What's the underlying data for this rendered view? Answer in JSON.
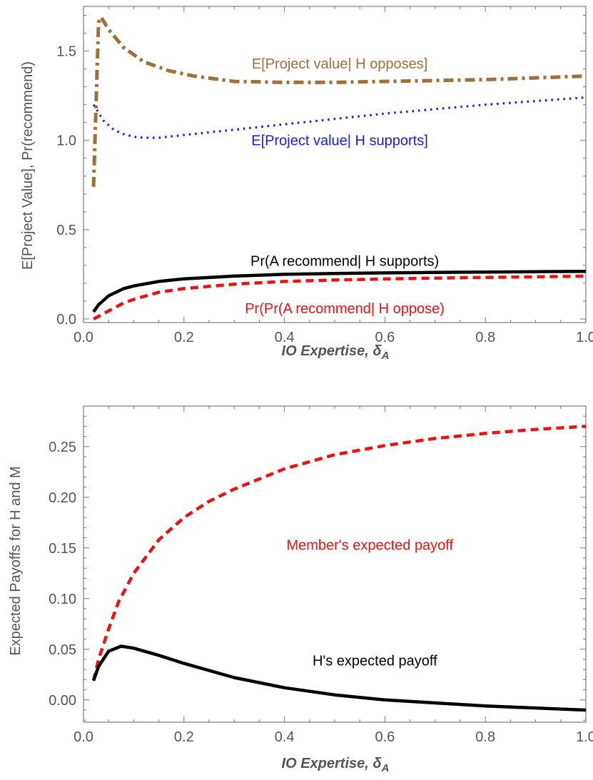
{
  "chart_data": [
    {
      "type": "line",
      "xlabel": "IO Expertise, δ",
      "xlabel_subscript": "A",
      "ylabel": "E[Project Value], Pr(recommend)",
      "xlim": [
        0,
        1.0
      ],
      "ylim": [
        -0.02,
        1.75
      ],
      "xticks": [
        "0.0",
        "0.2",
        "0.4",
        "0.6",
        "0.8",
        "1.0"
      ],
      "yticks": [
        "0.0",
        "0.5",
        "1.0",
        "1.5"
      ],
      "grid": false,
      "series": [
        {
          "name": "E[Project value| H opposes]",
          "color": "#a0703a",
          "style": "dashdot",
          "x": [
            0.02,
            0.03,
            0.035,
            0.05,
            0.08,
            0.12,
            0.17,
            0.22,
            0.3,
            0.4,
            0.5,
            0.6,
            0.7,
            0.8,
            0.9,
            1.0
          ],
          "y": [
            0.74,
            1.66,
            1.69,
            1.62,
            1.52,
            1.44,
            1.39,
            1.36,
            1.33,
            1.325,
            1.325,
            1.33,
            1.335,
            1.34,
            1.35,
            1.36
          ]
        },
        {
          "name": "E[Project value| H supports]",
          "color": "#1a1aee",
          "style": "dotted",
          "x": [
            0.02,
            0.04,
            0.06,
            0.08,
            0.1,
            0.12,
            0.15,
            0.2,
            0.3,
            0.4,
            0.5,
            0.6,
            0.7,
            0.8,
            0.9,
            1.0
          ],
          "y": [
            1.2,
            1.11,
            1.06,
            1.035,
            1.02,
            1.015,
            1.015,
            1.03,
            1.06,
            1.09,
            1.12,
            1.15,
            1.175,
            1.2,
            1.22,
            1.24
          ]
        },
        {
          "name": "Pr(A recommend| H supports)",
          "color": "#000000",
          "style": "solid",
          "x": [
            0.02,
            0.03,
            0.05,
            0.08,
            0.1,
            0.15,
            0.2,
            0.3,
            0.4,
            0.5,
            0.6,
            0.7,
            0.8,
            0.9,
            1.0
          ],
          "y": [
            0.04,
            0.08,
            0.13,
            0.17,
            0.185,
            0.21,
            0.225,
            0.24,
            0.25,
            0.255,
            0.258,
            0.261,
            0.263,
            0.265,
            0.267
          ]
        },
        {
          "name": "Pr(Pr(A recommend| H oppose)",
          "color": "#ee1111",
          "style": "dashed",
          "x": [
            0.02,
            0.04,
            0.06,
            0.08,
            0.1,
            0.15,
            0.2,
            0.3,
            0.4,
            0.5,
            0.6,
            0.7,
            0.8,
            0.9,
            1.0
          ],
          "y": [
            0.0,
            0.03,
            0.06,
            0.09,
            0.11,
            0.15,
            0.17,
            0.195,
            0.21,
            0.218,
            0.224,
            0.229,
            0.233,
            0.236,
            0.24
          ]
        }
      ],
      "annotations": [
        {
          "text": "E[Project value| H opposes]",
          "x": 0.51,
          "y": 1.43,
          "color": "#a0703a"
        },
        {
          "text": "E[Project value| H supports]",
          "x": 0.51,
          "y": 1.0,
          "color": "#1a1aee"
        },
        {
          "text": "Pr(A recommend| H supports)",
          "x": 0.52,
          "y": 0.325,
          "color": "#000000"
        },
        {
          "text": "Pr(Pr(A recommend| H oppose)",
          "x": 0.52,
          "y": 0.06,
          "color": "#ee1111"
        }
      ]
    },
    {
      "type": "line",
      "xlabel": "IO Expertise, δ",
      "xlabel_subscript": "A",
      "ylabel": "Expected Payoffs for H and M",
      "xlim": [
        0,
        1.0
      ],
      "ylim": [
        -0.022,
        0.29
      ],
      "xticks": [
        "0.0",
        "0.2",
        "0.4",
        "0.6",
        "0.8",
        "1.0"
      ],
      "yticks": [
        "0.00",
        "0.05",
        "0.10",
        "0.15",
        "0.20",
        "0.25"
      ],
      "grid": false,
      "series": [
        {
          "name": "Member's expected payoff",
          "color": "#ee1111",
          "style": "dashed",
          "x": [
            0.02,
            0.03,
            0.05,
            0.07,
            0.1,
            0.15,
            0.2,
            0.25,
            0.3,
            0.4,
            0.5,
            0.6,
            0.7,
            0.8,
            0.9,
            1.0
          ],
          "y": [
            0.019,
            0.04,
            0.07,
            0.097,
            0.125,
            0.158,
            0.18,
            0.196,
            0.208,
            0.228,
            0.242,
            0.251,
            0.258,
            0.263,
            0.267,
            0.27
          ]
        },
        {
          "name": "H's expected payoff",
          "color": "#000000",
          "style": "solid",
          "x": [
            0.02,
            0.03,
            0.05,
            0.075,
            0.1,
            0.15,
            0.2,
            0.3,
            0.4,
            0.5,
            0.6,
            0.7,
            0.8,
            0.9,
            1.0
          ],
          "y": [
            0.019,
            0.033,
            0.048,
            0.053,
            0.051,
            0.044,
            0.036,
            0.022,
            0.012,
            0.005,
            0.0,
            -0.003,
            -0.006,
            -0.008,
            -0.01
          ]
        }
      ],
      "annotations": [
        {
          "text": "Member's expected payoff",
          "x": 0.57,
          "y": 0.153,
          "color": "#ee1111"
        },
        {
          "text": "H's expected payoff",
          "x": 0.58,
          "y": 0.039,
          "color": "#000000"
        }
      ]
    }
  ]
}
